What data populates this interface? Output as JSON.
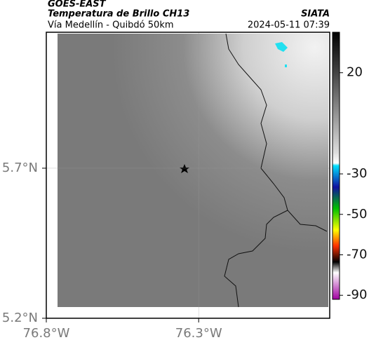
{
  "header": {
    "title": "GOES-EAST",
    "subtitle": "Temperatura de Brillo CH13",
    "source": "SIATA",
    "route": "Vía Medellín - Quibdó 50km",
    "timestamp": "2024-05-11 07:39"
  },
  "map": {
    "lat_lim": [
      5.2,
      6.153
    ],
    "lon_lim": [
      -76.8,
      -75.87
    ],
    "lat_ticks": [
      {
        "value": 5.7,
        "label": "5.7°N"
      },
      {
        "value": 5.2,
        "label": "5.2°N"
      }
    ],
    "lon_ticks": [
      {
        "value": -76.8,
        "label": "76.8°W"
      },
      {
        "value": -76.3,
        "label": "76.3°W"
      }
    ]
  },
  "colorbar": {
    "lim": [
      40,
      -92
    ],
    "ticks": [
      20,
      -30,
      -50,
      -70,
      -90
    ]
  }
}
